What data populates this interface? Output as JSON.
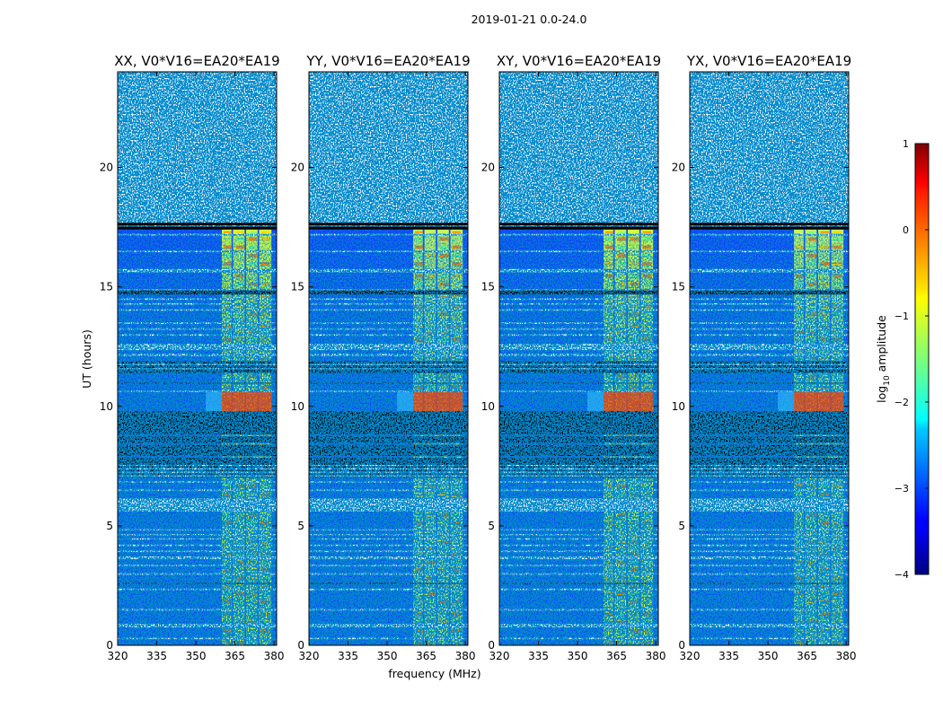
{
  "figure_title": "2019-01-21 0.0-24.0",
  "chart_data": {
    "type": "heatmap",
    "shared": {
      "xlabel": "frequency (MHz)",
      "ylabel": "UT (hours)",
      "xlim": [
        320,
        381
      ],
      "ylim": [
        0,
        24
      ],
      "xticks": [
        320,
        335,
        350,
        365,
        380
      ],
      "yticks": [
        0,
        5,
        10,
        15,
        20
      ],
      "colorscale": "jet",
      "band_MHz": [
        360,
        379
      ],
      "band_channel_gaps_MHz": [
        364,
        369,
        374
      ]
    },
    "panels": [
      {
        "title": "XX, V0*V16=EA20*EA19",
        "polarization": "XX"
      },
      {
        "title": "YY, V0*V16=EA20*EA19",
        "polarization": "YY"
      },
      {
        "title": "XY, V0*V16=EA20*EA19",
        "polarization": "XY"
      },
      {
        "title": "YX, V0*V16=EA20*EA19",
        "polarization": "YX"
      }
    ],
    "time_segments_hours": [
      {
        "kind": "data",
        "from": 0.0,
        "to": 0.25
      },
      {
        "kind": "gap",
        "from": 0.25,
        "to": 0.32
      },
      {
        "kind": "data",
        "from": 0.32,
        "to": 0.75
      },
      {
        "kind": "gap",
        "from": 0.75,
        "to": 0.9
      },
      {
        "kind": "data",
        "from": 0.9,
        "to": 1.45
      },
      {
        "kind": "gap",
        "from": 1.45,
        "to": 1.52
      },
      {
        "kind": "data",
        "from": 1.52,
        "to": 2.3
      },
      {
        "kind": "gap",
        "from": 2.3,
        "to": 2.38
      },
      {
        "kind": "data",
        "from": 2.38,
        "to": 2.55
      },
      {
        "kind": "flag",
        "from": 2.55,
        "to": 2.62
      },
      {
        "kind": "data",
        "from": 2.62,
        "to": 2.95
      },
      {
        "kind": "gap",
        "from": 2.95,
        "to": 3.02
      },
      {
        "kind": "data",
        "from": 3.02,
        "to": 3.3
      },
      {
        "kind": "gap",
        "from": 3.3,
        "to": 3.37
      },
      {
        "kind": "data",
        "from": 3.37,
        "to": 3.6
      },
      {
        "kind": "gap",
        "from": 3.6,
        "to": 3.72
      },
      {
        "kind": "data",
        "from": 3.72,
        "to": 3.9
      },
      {
        "kind": "gap",
        "from": 3.9,
        "to": 3.97
      },
      {
        "kind": "data",
        "from": 3.97,
        "to": 4.15
      },
      {
        "kind": "gap",
        "from": 4.15,
        "to": 4.22
      },
      {
        "kind": "data",
        "from": 4.22,
        "to": 4.42
      },
      {
        "kind": "gap",
        "from": 4.42,
        "to": 4.48
      },
      {
        "kind": "data",
        "from": 4.48,
        "to": 4.6
      },
      {
        "kind": "gap",
        "from": 4.6,
        "to": 4.66
      },
      {
        "kind": "data",
        "from": 4.66,
        "to": 4.8
      },
      {
        "kind": "gap",
        "from": 4.8,
        "to": 4.86
      },
      {
        "kind": "data",
        "from": 4.86,
        "to": 5.6
      },
      {
        "kind": "gap",
        "from": 5.6,
        "to": 6.15
      },
      {
        "kind": "data",
        "from": 6.15,
        "to": 6.45
      },
      {
        "kind": "gap",
        "from": 6.45,
        "to": 6.52
      },
      {
        "kind": "data",
        "from": 6.52,
        "to": 6.8
      },
      {
        "kind": "gap",
        "from": 6.8,
        "to": 6.86
      },
      {
        "kind": "data",
        "from": 6.86,
        "to": 7.0
      },
      {
        "kind": "flag",
        "from": 7.0,
        "to": 7.05
      },
      {
        "kind": "gap",
        "from": 7.05,
        "to": 7.12
      },
      {
        "kind": "flag",
        "from": 7.12,
        "to": 7.2
      },
      {
        "kind": "gap",
        "from": 7.2,
        "to": 7.27
      },
      {
        "kind": "flag",
        "from": 7.27,
        "to": 7.35
      },
      {
        "kind": "gap",
        "from": 7.35,
        "to": 7.42
      },
      {
        "kind": "flag",
        "from": 7.42,
        "to": 7.5
      },
      {
        "kind": "gap",
        "from": 7.5,
        "to": 7.55
      },
      {
        "kind": "flag",
        "from": 7.55,
        "to": 7.85
      },
      {
        "kind": "thin",
        "from": 7.85,
        "to": 7.92
      },
      {
        "kind": "flag",
        "from": 7.92,
        "to": 8.4
      },
      {
        "kind": "thin",
        "from": 8.4,
        "to": 8.47
      },
      {
        "kind": "flag",
        "from": 8.47,
        "to": 8.75
      },
      {
        "kind": "thin",
        "from": 8.75,
        "to": 8.82
      },
      {
        "kind": "flag",
        "from": 8.82,
        "to": 9.8
      },
      {
        "kind": "data",
        "from": 9.8,
        "to": 10.6
      },
      {
        "kind": "gap",
        "from": 10.6,
        "to": 10.66
      },
      {
        "kind": "data",
        "from": 10.66,
        "to": 10.95
      },
      {
        "kind": "flag",
        "from": 10.95,
        "to": 11.0
      },
      {
        "kind": "data",
        "from": 11.0,
        "to": 11.4
      },
      {
        "kind": "flag",
        "from": 11.4,
        "to": 11.55
      },
      {
        "kind": "gap",
        "from": 11.55,
        "to": 11.6
      },
      {
        "kind": "flag",
        "from": 11.6,
        "to": 11.72
      },
      {
        "kind": "gap",
        "from": 11.72,
        "to": 11.78
      },
      {
        "kind": "flag",
        "from": 11.78,
        "to": 11.9
      },
      {
        "kind": "data",
        "from": 11.9,
        "to": 12.1
      },
      {
        "kind": "gap",
        "from": 12.1,
        "to": 12.2
      },
      {
        "kind": "data",
        "from": 12.2,
        "to": 12.35
      },
      {
        "kind": "gap",
        "from": 12.35,
        "to": 12.62
      },
      {
        "kind": "data",
        "from": 12.62,
        "to": 12.95
      },
      {
        "kind": "gap",
        "from": 12.95,
        "to": 13.02
      },
      {
        "kind": "data",
        "from": 13.02,
        "to": 13.2
      },
      {
        "kind": "gap",
        "from": 13.2,
        "to": 13.27
      },
      {
        "kind": "data",
        "from": 13.27,
        "to": 13.45
      },
      {
        "kind": "gap",
        "from": 13.45,
        "to": 13.52
      },
      {
        "kind": "data",
        "from": 13.52,
        "to": 14.0
      },
      {
        "kind": "gap",
        "from": 14.0,
        "to": 14.07
      },
      {
        "kind": "data",
        "from": 14.07,
        "to": 14.25
      },
      {
        "kind": "gap",
        "from": 14.25,
        "to": 14.32
      },
      {
        "kind": "data",
        "from": 14.32,
        "to": 14.45
      },
      {
        "kind": "gap",
        "from": 14.45,
        "to": 14.52
      },
      {
        "kind": "data",
        "from": 14.52,
        "to": 14.68
      },
      {
        "kind": "flag",
        "from": 14.68,
        "to": 14.85
      },
      {
        "kind": "gap",
        "from": 14.85,
        "to": 14.9
      },
      {
        "kind": "data",
        "from": 14.9,
        "to": 15.6
      },
      {
        "kind": "gap",
        "from": 15.6,
        "to": 15.75
      },
      {
        "kind": "data",
        "from": 15.75,
        "to": 16.45
      },
      {
        "kind": "gap",
        "from": 16.45,
        "to": 16.52
      },
      {
        "kind": "data",
        "from": 16.52,
        "to": 17.15
      },
      {
        "kind": "gap",
        "from": 17.15,
        "to": 17.22
      },
      {
        "kind": "data",
        "from": 17.22,
        "to": 17.4
      },
      {
        "kind": "flag",
        "from": 17.4,
        "to": 17.52
      },
      {
        "kind": "gap",
        "from": 17.52,
        "to": 17.57
      },
      {
        "kind": "flag",
        "from": 17.57,
        "to": 17.68
      }
    ],
    "colorbar": {
      "label": "log₁₀ amplitude",
      "label_prefix": "log",
      "label_sub": "10",
      "label_suffix": " amplitude",
      "range": [
        -4,
        1
      ],
      "ticks": [
        1,
        0,
        -1,
        -2,
        -3,
        -4
      ],
      "ticklabels": [
        "1",
        "0",
        "−1",
        "−2",
        "−3",
        "−4"
      ]
    }
  }
}
